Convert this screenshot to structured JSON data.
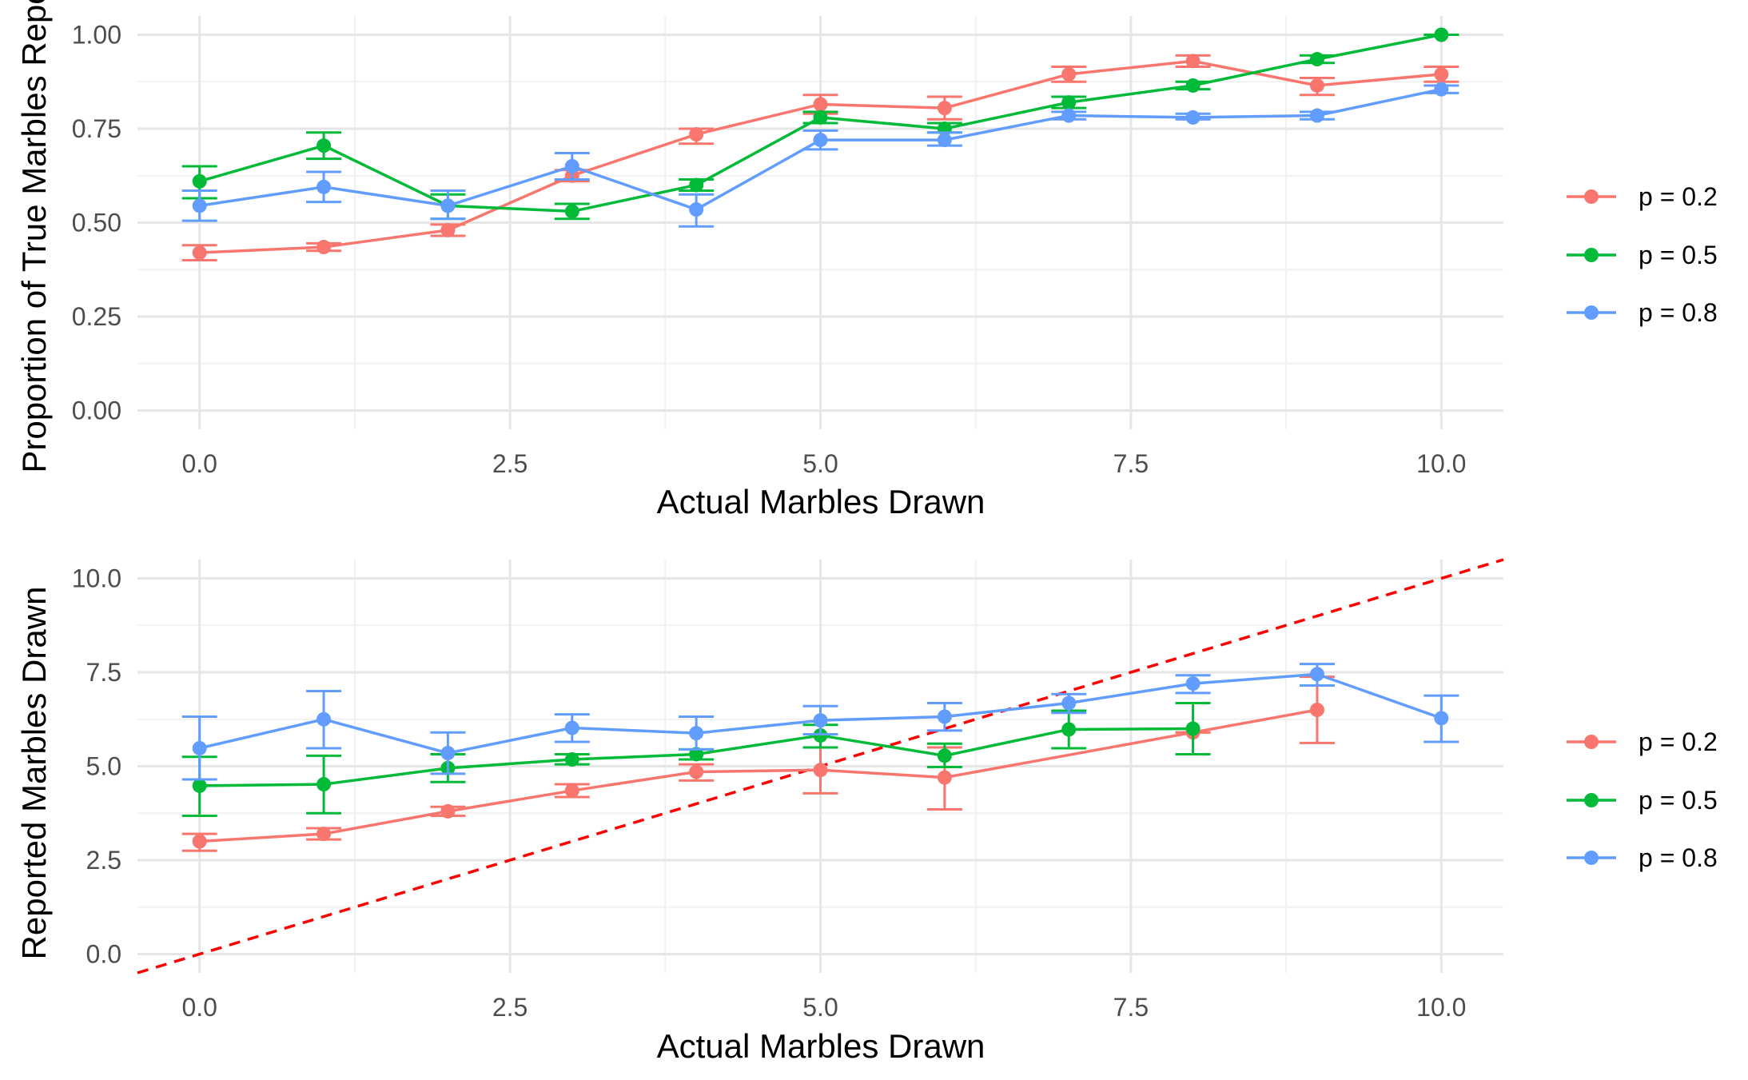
{
  "colors": {
    "background": "#ffffff",
    "grid_major": "#e6e6e6",
    "grid_minor": "#f1f1f1",
    "reference_line": "#ff0000",
    "series": [
      "#F8766D",
      "#00BA38",
      "#619CFF"
    ]
  },
  "legend_labels": [
    "p = 0.2",
    "p = 0.5",
    "p = 0.8"
  ],
  "chart_data": [
    {
      "type": "line",
      "panel": "top",
      "xlabel": "Actual Marbles Drawn",
      "ylabel": "Proportion of True Marbles Repo",
      "xlim": [
        -0.5,
        10.5
      ],
      "ylim": [
        0,
        1
      ],
      "x_ticks": [
        "0.0",
        "2.5",
        "5.0",
        "7.5",
        "10.0"
      ],
      "x_tick_values": [
        0,
        2.5,
        5,
        7.5,
        10
      ],
      "y_ticks": [
        "0.00",
        "0.25",
        "0.50",
        "0.75",
        "1.00"
      ],
      "y_tick_values": [
        0,
        0.25,
        0.5,
        0.75,
        1
      ],
      "grid": true,
      "legend_position": "right",
      "error_bars": true,
      "series": [
        {
          "name": "p = 0.2",
          "x": [
            0,
            1,
            2,
            3,
            4,
            5,
            6,
            7,
            8,
            9,
            10
          ],
          "y": [
            0.42,
            0.435,
            0.48,
            0.625,
            0.735,
            0.815,
            0.805,
            0.895,
            0.93,
            0.865,
            0.895
          ],
          "err_low": [
            0.4,
            0.425,
            0.465,
            0.61,
            0.71,
            0.79,
            0.775,
            0.875,
            0.915,
            0.84,
            0.875
          ],
          "err_high": [
            0.44,
            0.445,
            0.495,
            0.64,
            0.75,
            0.84,
            0.835,
            0.915,
            0.945,
            0.885,
            0.915
          ]
        },
        {
          "name": "p = 0.5",
          "x": [
            0,
            1,
            2,
            3,
            4,
            5,
            6,
            7,
            8,
            9,
            10
          ],
          "y": [
            0.61,
            0.705,
            0.545,
            0.53,
            0.6,
            0.78,
            0.75,
            0.82,
            0.865,
            0.935,
            1.0
          ],
          "err_low": [
            0.565,
            0.67,
            0.51,
            0.51,
            0.585,
            0.765,
            0.74,
            0.805,
            0.855,
            0.925,
            1.0
          ],
          "err_high": [
            0.65,
            0.74,
            0.575,
            0.55,
            0.615,
            0.795,
            0.765,
            0.835,
            0.875,
            0.945,
            1.0
          ]
        },
        {
          "name": "p = 0.8",
          "x": [
            0,
            1,
            2,
            3,
            4,
            5,
            6,
            7,
            8,
            9,
            10
          ],
          "y": [
            0.545,
            0.595,
            0.545,
            0.65,
            0.535,
            0.72,
            0.72,
            0.785,
            0.78,
            0.785,
            0.855
          ],
          "err_low": [
            0.505,
            0.555,
            0.51,
            0.615,
            0.49,
            0.695,
            0.705,
            0.775,
            0.775,
            0.775,
            0.845
          ],
          "err_high": [
            0.585,
            0.635,
            0.585,
            0.685,
            0.575,
            0.745,
            0.74,
            0.795,
            0.79,
            0.795,
            0.865
          ]
        }
      ]
    },
    {
      "type": "line",
      "panel": "bottom",
      "xlabel": "Actual Marbles Drawn",
      "ylabel": "Reported Marbles Drawn",
      "xlim": [
        -0.5,
        10.5
      ],
      "ylim": [
        0,
        10
      ],
      "x_ticks": [
        "0.0",
        "2.5",
        "5.0",
        "7.5",
        "10.0"
      ],
      "x_tick_values": [
        0,
        2.5,
        5,
        7.5,
        10
      ],
      "y_ticks": [
        "0.0",
        "2.5",
        "5.0",
        "7.5",
        "10.0"
      ],
      "y_tick_values": [
        0,
        2.5,
        5,
        7.5,
        10
      ],
      "grid": true,
      "legend_position": "right",
      "error_bars": true,
      "reference_line": {
        "style": "dashed",
        "slope": 1,
        "intercept": 0
      },
      "series": [
        {
          "name": "p = 0.2",
          "x": [
            0,
            1,
            2,
            3,
            4,
            5,
            6,
            8,
            9
          ],
          "y": [
            3.0,
            3.2,
            3.8,
            4.35,
            4.85,
            4.9,
            4.7,
            5.9,
            6.5
          ],
          "err_low": [
            2.75,
            3.05,
            3.68,
            4.18,
            4.62,
            4.28,
            3.85,
            5.9,
            5.62
          ],
          "err_high": [
            3.2,
            3.35,
            3.92,
            4.52,
            5.05,
            5.5,
            5.5,
            5.9,
            7.38
          ]
        },
        {
          "name": "p = 0.5",
          "x": [
            0,
            1,
            2,
            3,
            4,
            5,
            6,
            7,
            8
          ],
          "y": [
            4.48,
            4.52,
            4.95,
            5.18,
            5.32,
            5.82,
            5.28,
            5.98,
            6.0
          ],
          "err_low": [
            3.68,
            3.75,
            4.58,
            5.05,
            5.18,
            5.5,
            4.98,
            5.48,
            5.32
          ],
          "err_high": [
            5.25,
            5.28,
            5.32,
            5.32,
            5.45,
            6.1,
            5.6,
            6.48,
            6.68
          ]
        },
        {
          "name": "p = 0.8",
          "x": [
            0,
            1,
            2,
            3,
            4,
            5,
            6,
            7,
            8,
            9,
            10
          ],
          "y": [
            5.48,
            6.25,
            5.35,
            6.02,
            5.88,
            6.22,
            6.32,
            6.68,
            7.2,
            7.45,
            6.28
          ],
          "err_low": [
            4.65,
            5.48,
            4.8,
            5.65,
            5.45,
            5.85,
            5.95,
            6.42,
            6.95,
            7.15,
            5.65
          ],
          "err_high": [
            6.32,
            7.0,
            5.9,
            6.38,
            6.32,
            6.6,
            6.68,
            6.92,
            7.42,
            7.72,
            6.88
          ]
        }
      ]
    }
  ]
}
